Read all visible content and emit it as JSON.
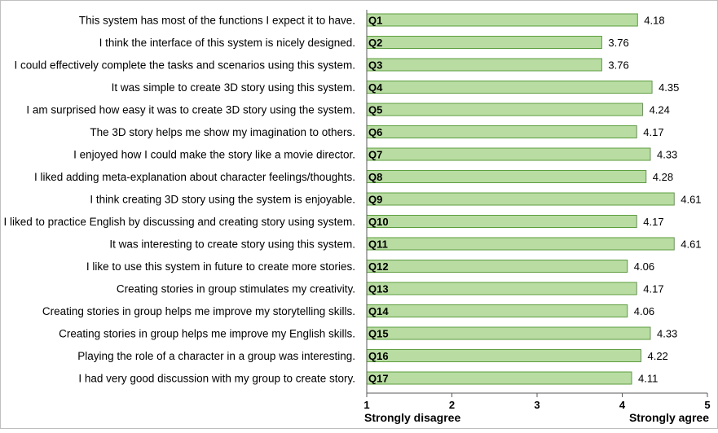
{
  "chart_data": {
    "type": "bar",
    "orientation": "horizontal",
    "categories": [
      "This system has most of the functions I expect it to have.",
      "I think the interface of this system is nicely designed.",
      "I could effectively complete the tasks and scenarios using this system.",
      "It was simple to create 3D story using this system.",
      "I am surprised how easy it was to create 3D story using the system.",
      "The 3D story helps me show my imagination to others.",
      "I enjoyed how I could make the story like a movie director.",
      "I liked adding meta-explanation about character feelings/thoughts.",
      "I think creating 3D story using the system is enjoyable.",
      "I liked to practice English by discussing and creating story using system.",
      "It was interesting to create story using this system.",
      "I like to use this system in future to create more stories.",
      "Creating stories in group stimulates my creativity.",
      "Creating stories in group helps me improve my storytelling skills.",
      "Creating stories in group helps me improve my English skills.",
      "Playing the role of a character in a group was interesting.",
      "I had very good discussion with my group to create story."
    ],
    "bar_labels": [
      "Q1",
      "Q2",
      "Q3",
      "Q4",
      "Q5",
      "Q6",
      "Q7",
      "Q8",
      "Q9",
      "Q10",
      "Q11",
      "Q12",
      "Q13",
      "Q14",
      "Q15",
      "Q16",
      "Q17"
    ],
    "values": [
      4.18,
      3.76,
      3.76,
      4.35,
      4.24,
      4.17,
      4.33,
      4.28,
      4.61,
      4.17,
      4.61,
      4.06,
      4.17,
      4.06,
      4.33,
      4.22,
      4.11
    ],
    "value_labels": [
      "4.18",
      "3.76",
      "3.76",
      "4.35",
      "4.24",
      "4.17",
      "4.33",
      "4.28",
      "4.61",
      "4.17",
      "4.61",
      "4.06",
      "4.17",
      "4.06",
      "4.33",
      "4.22",
      "4.11"
    ],
    "xlim": [
      1,
      5
    ],
    "xticks": [
      1,
      2,
      3,
      4,
      5
    ],
    "xtick_labels": [
      "1",
      "2",
      "3",
      "4",
      "5"
    ],
    "x_min_label": "Strongly disagree",
    "x_max_label": "Strongly agree",
    "grid": false,
    "colors": {
      "bar_fill": "#b9dca3",
      "bar_stroke": "#5c9e3e",
      "text": "#000000"
    }
  }
}
